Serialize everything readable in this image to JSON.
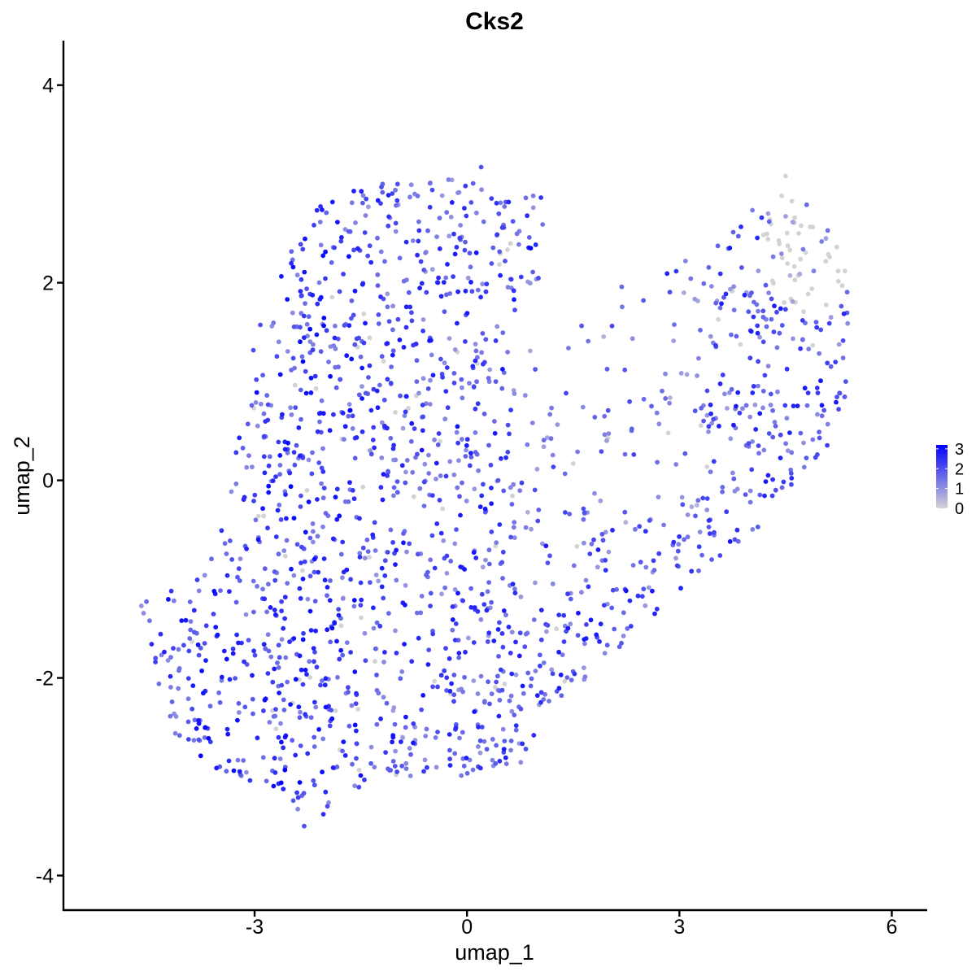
{
  "chart_data": {
    "type": "scatter",
    "title": "Cks2",
    "xlabel": "umap_1",
    "ylabel": "umap_2",
    "xlim": [
      -5.7,
      6.5
    ],
    "ylim": [
      -4.35,
      4.45
    ],
    "xticks": [
      -3,
      0,
      3,
      6
    ],
    "xtick_labels": [
      "-3",
      "0",
      "3",
      "6"
    ],
    "yticks": [
      -4,
      -2,
      0,
      2,
      4
    ],
    "ytick_labels": [
      "-4",
      "-2",
      "0",
      "2",
      "4"
    ],
    "grid": false,
    "legend_position": "right",
    "color_scale": {
      "low": "#d3d3d3",
      "high": "#0000ff",
      "min": 0,
      "max": 3.2,
      "ticks": [
        0,
        1,
        2,
        3
      ],
      "tick_labels": [
        "0",
        "1",
        "2",
        "3"
      ]
    },
    "sample_points": [
      {
        "x": 4.5,
        "y": 3.08,
        "value": 0
      },
      {
        "x": 0.2,
        "y": 3.17,
        "value": 2
      },
      {
        "x": -4.6,
        "y": -1.27,
        "value": 1
      },
      {
        "x": -2.3,
        "y": -3.5,
        "value": 2
      },
      {
        "x": 0.9,
        "y": 2.35,
        "value": 3.2
      },
      {
        "x": 5.3,
        "y": 1.97,
        "value": 0
      },
      {
        "x": -4.4,
        "y": -1.8,
        "value": 2
      },
      {
        "x": -1.0,
        "y": -2.98,
        "value": 0
      },
      {
        "x": 1.5,
        "y": 0.17,
        "value": 0
      },
      {
        "x": 5.35,
        "y": 1.0,
        "value": 2
      }
    ]
  }
}
